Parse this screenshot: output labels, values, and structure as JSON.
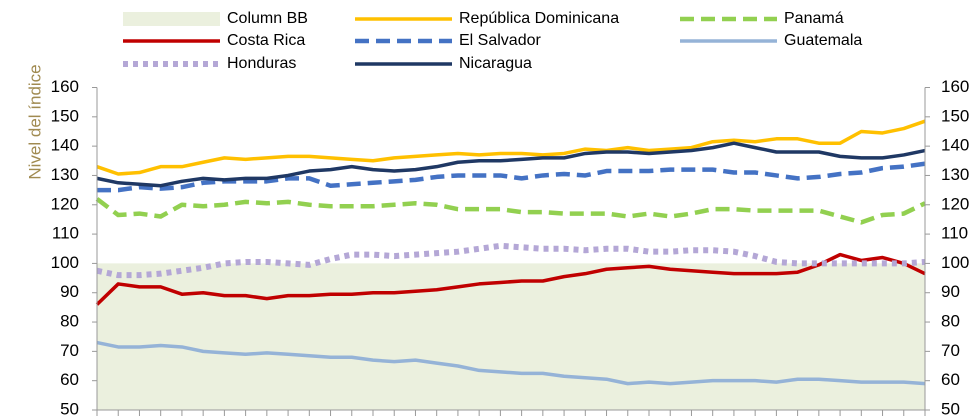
{
  "chart_data": {
    "type": "line",
    "y_label": "Nivel del índice",
    "categories": [
      null,
      null,
      null,
      null,
      null,
      null,
      null,
      null,
      null,
      null,
      null,
      null,
      null,
      null,
      null,
      null,
      null,
      null,
      null,
      null,
      null,
      null,
      null,
      null,
      null,
      null,
      null,
      null,
      null,
      null,
      null,
      null,
      null,
      null,
      null,
      null,
      null,
      null,
      null,
      null
    ],
    "ylim": [
      50,
      160
    ],
    "yticks": [
      50,
      60,
      70,
      80,
      90,
      100,
      110,
      120,
      130,
      140,
      150,
      160
    ],
    "y2lim": [
      50,
      160
    ],
    "y2ticks": [
      50,
      60,
      70,
      80,
      90,
      100,
      110,
      120,
      130,
      140,
      150,
      160
    ],
    "series": [
      {
        "name": "Column BB",
        "color": "#ebf0de",
        "style": "area",
        "values": [
          100,
          100,
          100,
          100,
          100,
          100,
          100,
          100,
          100,
          100,
          100,
          100,
          100,
          100,
          100,
          100,
          100,
          100,
          100,
          100,
          100,
          100,
          100,
          100,
          100,
          100,
          100,
          100,
          100,
          100,
          100,
          100,
          100,
          100,
          100,
          100,
          100,
          100,
          100,
          100
        ]
      },
      {
        "name": "República Dominicana",
        "color": "#ffc000",
        "style": "solid",
        "values": [
          133,
          130.5,
          131,
          133,
          133,
          134.5,
          136,
          135.5,
          136,
          136.5,
          136.5,
          136,
          135.5,
          135,
          136,
          136.5,
          137,
          137.5,
          137,
          137.5,
          137.5,
          137,
          137.5,
          139,
          138.5,
          139.5,
          138.5,
          139,
          139.5,
          141.5,
          142,
          141.5,
          142.5,
          142.5,
          141,
          141,
          145,
          144.5,
          146,
          148.5
        ]
      },
      {
        "name": "Panamá",
        "color": "#92d050",
        "style": "dashed",
        "values": [
          122,
          116.5,
          117,
          116,
          120,
          119.5,
          120,
          121,
          120.5,
          121,
          120,
          119.5,
          119.5,
          119.5,
          120,
          120.5,
          120,
          118.5,
          118.5,
          118.5,
          117.5,
          117.5,
          117,
          117,
          117,
          116,
          117,
          116,
          117,
          118.5,
          118.5,
          118,
          118,
          118,
          118,
          116,
          114,
          116.5,
          117,
          120.5
        ]
      },
      {
        "name": "Costa Rica",
        "color": "#c00000",
        "style": "solid",
        "values": [
          86,
          93,
          92,
          92,
          89.5,
          90,
          89,
          89,
          88,
          89,
          89,
          89.5,
          89.5,
          90,
          90,
          90.5,
          91,
          92,
          93,
          93.5,
          94,
          94,
          95.5,
          96.5,
          98,
          98.5,
          99,
          98,
          97.5,
          97,
          96.5,
          96.5,
          96.5,
          97,
          99.5,
          103,
          101,
          102,
          100,
          96.5
        ]
      },
      {
        "name": "El Salvador",
        "color": "#4472c4",
        "style": "dashed",
        "values": [
          125,
          125,
          126,
          125.5,
          126,
          127.5,
          128,
          128,
          128,
          129,
          129,
          126.5,
          127,
          127.5,
          128,
          128.5,
          129.5,
          130,
          130,
          130,
          129,
          130,
          130.5,
          130,
          131.5,
          131.5,
          131.5,
          132,
          132,
          132,
          131,
          131,
          130,
          129,
          129.5,
          130.5,
          131,
          132.5,
          133,
          134
        ]
      },
      {
        "name": "Guatemala",
        "color": "#95b3d7",
        "style": "solid",
        "values": [
          73,
          71.5,
          71.5,
          72,
          71.5,
          70,
          69.5,
          69,
          69.5,
          69,
          68.5,
          68,
          68,
          67,
          66.5,
          67,
          66,
          65,
          63.5,
          63,
          62.5,
          62.5,
          61.5,
          61,
          60.5,
          59,
          59.5,
          59,
          59.5,
          60,
          60,
          60,
          59.5,
          60.5,
          60.5,
          60,
          59.5,
          59.5,
          59.5,
          59
        ]
      },
      {
        "name": "Honduras",
        "color": "#b4a7d6",
        "style": "dotted",
        "values": [
          97.5,
          96,
          96,
          96.5,
          97.5,
          98.5,
          100,
          100.5,
          100.5,
          100,
          99.5,
          101.5,
          103,
          103,
          102.5,
          103,
          103.5,
          104,
          105,
          106,
          105.5,
          105,
          105,
          104.5,
          105,
          105,
          104,
          104,
          104.5,
          104.5,
          104,
          102.5,
          100.5,
          100,
          100,
          100,
          100,
          100,
          100,
          100.5
        ]
      },
      {
        "name": "Nicaragua",
        "color": "#1f3864",
        "style": "solid",
        "values": [
          129,
          127.5,
          127,
          126.5,
          128,
          129,
          128.5,
          129,
          129,
          130,
          131.5,
          132,
          133,
          132,
          131.5,
          132,
          133,
          134.5,
          135,
          135,
          135.5,
          136,
          136,
          137.5,
          138,
          138,
          137.5,
          138,
          138.5,
          139.5,
          141,
          139.5,
          138,
          138,
          138,
          136.5,
          136,
          136,
          137,
          138.5
        ]
      }
    ]
  }
}
